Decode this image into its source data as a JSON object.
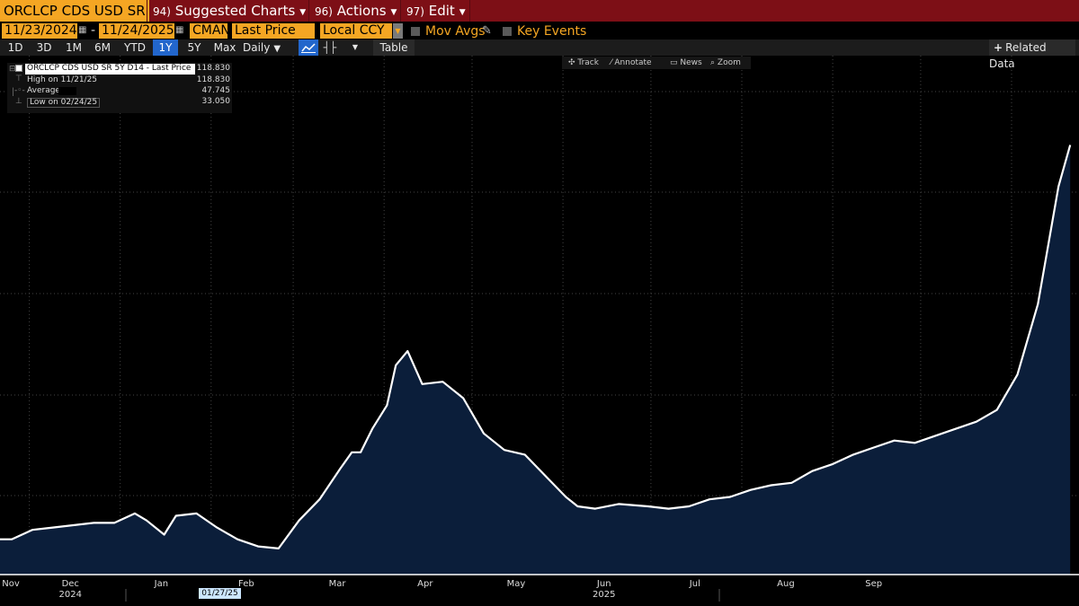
{
  "header": {
    "security": "ORCLCP CDS USD SR",
    "menus": [
      {
        "num": "94)",
        "label": "Suggested Charts"
      },
      {
        "num": "96)",
        "label": "Actions"
      },
      {
        "num": "97)",
        "label": "Edit"
      }
    ]
  },
  "controls": {
    "start_date": "11/23/2024",
    "end_date": "11/24/2025",
    "source": "CMAN",
    "field": "Last Price",
    "currency": "Local CCY",
    "mov_avgs": "Mov Avgs",
    "key_events": "Key Events"
  },
  "periods": [
    "1D",
    "3D",
    "1M",
    "6M",
    "YTD",
    "1Y",
    "5Y",
    "Max"
  ],
  "active_period": "1Y",
  "frequency": "Daily",
  "table_label": "Table",
  "related_data": "Related Data",
  "tools": {
    "track": "Track",
    "annotate": "Annotate",
    "news": "News",
    "zoom": "Zoom"
  },
  "legend": {
    "title": "ORCLCP CDS USD SR 5Y D14 - Last Price",
    "title_value": "118.830",
    "high_label": "High on 11/21/25",
    "high_value": "118.830",
    "avg_label": "Average",
    "avg_value": "47.745",
    "low_label": "Low on 02/24/25",
    "low_value": "33.050"
  },
  "cursor_date": "01/27/25",
  "colors": {
    "menu_bar": "#7d0f16",
    "accent": "#f5a623",
    "line": "#ffffff",
    "area_fill": "#0b1e3a",
    "active_period": "#2266cc"
  },
  "chart_data": {
    "type": "area",
    "grid": true,
    "x_tick_labels": [
      "Nov",
      "Dec",
      "Jan",
      "Feb",
      "Mar",
      "Apr",
      "May",
      "Jun",
      "Jul",
      "Aug",
      "Sep"
    ],
    "x_year_labels": [
      "2024",
      "2025"
    ],
    "series": [
      {
        "name": "ORCLCP CDS USD SR 5Y D14 - Last Price",
        "x": [
          "2024-11-25",
          "2024-12-02",
          "2024-12-09",
          "2024-12-16",
          "2024-12-23",
          "2024-12-30",
          "2025-01-06",
          "2025-01-10",
          "2025-01-16",
          "2025-01-20",
          "2025-01-27",
          "2025-02-03",
          "2025-02-10",
          "2025-02-17",
          "2025-02-24",
          "2025-03-03",
          "2025-03-10",
          "2025-03-17",
          "2025-03-21",
          "2025-03-24",
          "2025-03-28",
          "2025-04-02",
          "2025-04-05",
          "2025-04-09",
          "2025-04-14",
          "2025-04-21",
          "2025-04-28",
          "2025-05-05",
          "2025-05-12",
          "2025-05-19",
          "2025-05-26",
          "2025-06-02",
          "2025-06-06",
          "2025-06-12",
          "2025-06-20",
          "2025-06-30",
          "2025-07-07",
          "2025-07-14",
          "2025-07-21",
          "2025-07-28",
          "2025-08-04",
          "2025-08-11",
          "2025-08-18",
          "2025-08-25",
          "2025-09-01",
          "2025-09-08",
          "2025-09-15",
          "2025-09-22",
          "2025-09-29",
          "2025-10-06",
          "2025-10-13",
          "2025-10-20",
          "2025-10-27",
          "2025-11-03",
          "2025-11-10",
          "2025-11-17",
          "2025-11-21"
        ],
        "y": [
          35.0,
          37.0,
          37.5,
          38.0,
          38.5,
          38.5,
          40.5,
          39.0,
          36.0,
          40.0,
          40.5,
          37.5,
          35.0,
          33.5,
          33.05,
          39.0,
          43.5,
          50.0,
          53.5,
          53.5,
          58.5,
          63.5,
          72.0,
          75.0,
          68.0,
          68.5,
          65.0,
          57.5,
          54.0,
          53.0,
          48.5,
          44.0,
          42.0,
          41.5,
          42.5,
          42.0,
          41.5,
          42.0,
          43.5,
          44.0,
          45.5,
          46.5,
          47.0,
          49.5,
          51.0,
          53.0,
          54.5,
          56.0,
          55.5,
          57.0,
          58.5,
          60.0,
          62.5,
          70.0,
          85.0,
          110.0,
          118.83
        ]
      }
    ]
  }
}
